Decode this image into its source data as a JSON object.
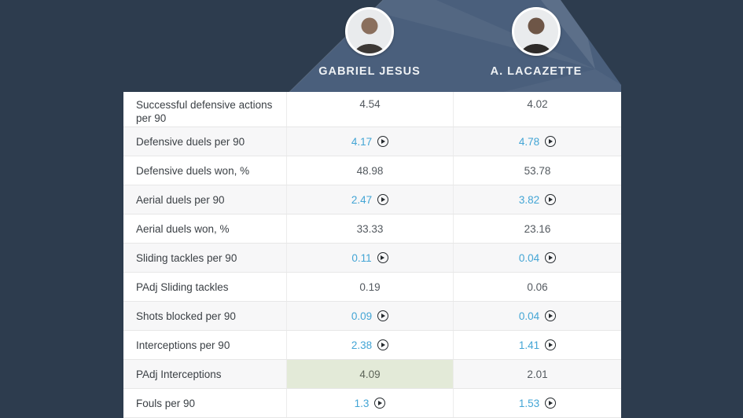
{
  "header": {
    "players": [
      {
        "name": "GABRIEL JESUS",
        "avatar": "player-photo"
      },
      {
        "name": "A. LACAZETTE",
        "avatar": "player-photo"
      }
    ]
  },
  "table": {
    "rows": [
      {
        "label": "Successful defensive actions per 90",
        "values": [
          {
            "text": "4.54"
          },
          {
            "text": "4.02"
          }
        ]
      },
      {
        "label": "Defensive duels per 90",
        "values": [
          {
            "text": "4.17",
            "video": true
          },
          {
            "text": "4.78",
            "video": true
          }
        ]
      },
      {
        "label": "Defensive duels won, %",
        "values": [
          {
            "text": "48.98"
          },
          {
            "text": "53.78"
          }
        ]
      },
      {
        "label": "Aerial duels per 90",
        "values": [
          {
            "text": "2.47",
            "video": true
          },
          {
            "text": "3.82",
            "video": true
          }
        ]
      },
      {
        "label": "Aerial duels won, %",
        "values": [
          {
            "text": "33.33"
          },
          {
            "text": "23.16"
          }
        ]
      },
      {
        "label": "Sliding tackles per 90",
        "values": [
          {
            "text": "0.11",
            "video": true
          },
          {
            "text": "0.04",
            "video": true
          }
        ]
      },
      {
        "label": "PAdj Sliding tackles",
        "values": [
          {
            "text": "0.19"
          },
          {
            "text": "0.06"
          }
        ]
      },
      {
        "label": "Shots blocked per 90",
        "values": [
          {
            "text": "0.09",
            "video": true
          },
          {
            "text": "0.04",
            "video": true
          }
        ]
      },
      {
        "label": "Interceptions per 90",
        "values": [
          {
            "text": "2.38",
            "video": true
          },
          {
            "text": "1.41",
            "video": true
          }
        ]
      },
      {
        "label": "PAdj Interceptions",
        "values": [
          {
            "text": "4.09",
            "highlight": "green"
          },
          {
            "text": "2.01"
          }
        ]
      },
      {
        "label": "Fouls per 90",
        "values": [
          {
            "text": "1.3",
            "video": true
          },
          {
            "text": "1.53",
            "video": true
          }
        ]
      }
    ]
  },
  "icons": {
    "video": "play-circle-icon"
  },
  "colors": {
    "page_background": "#2d3c4e",
    "header_panel": "#4a5f7c",
    "value_link_blue": "#43a5d5",
    "best_value_highlight_green": "#e3ead8",
    "row_stripe": "#f7f7f8",
    "play_icon": "#24292d",
    "player_name_text": "#eef1f4"
  }
}
